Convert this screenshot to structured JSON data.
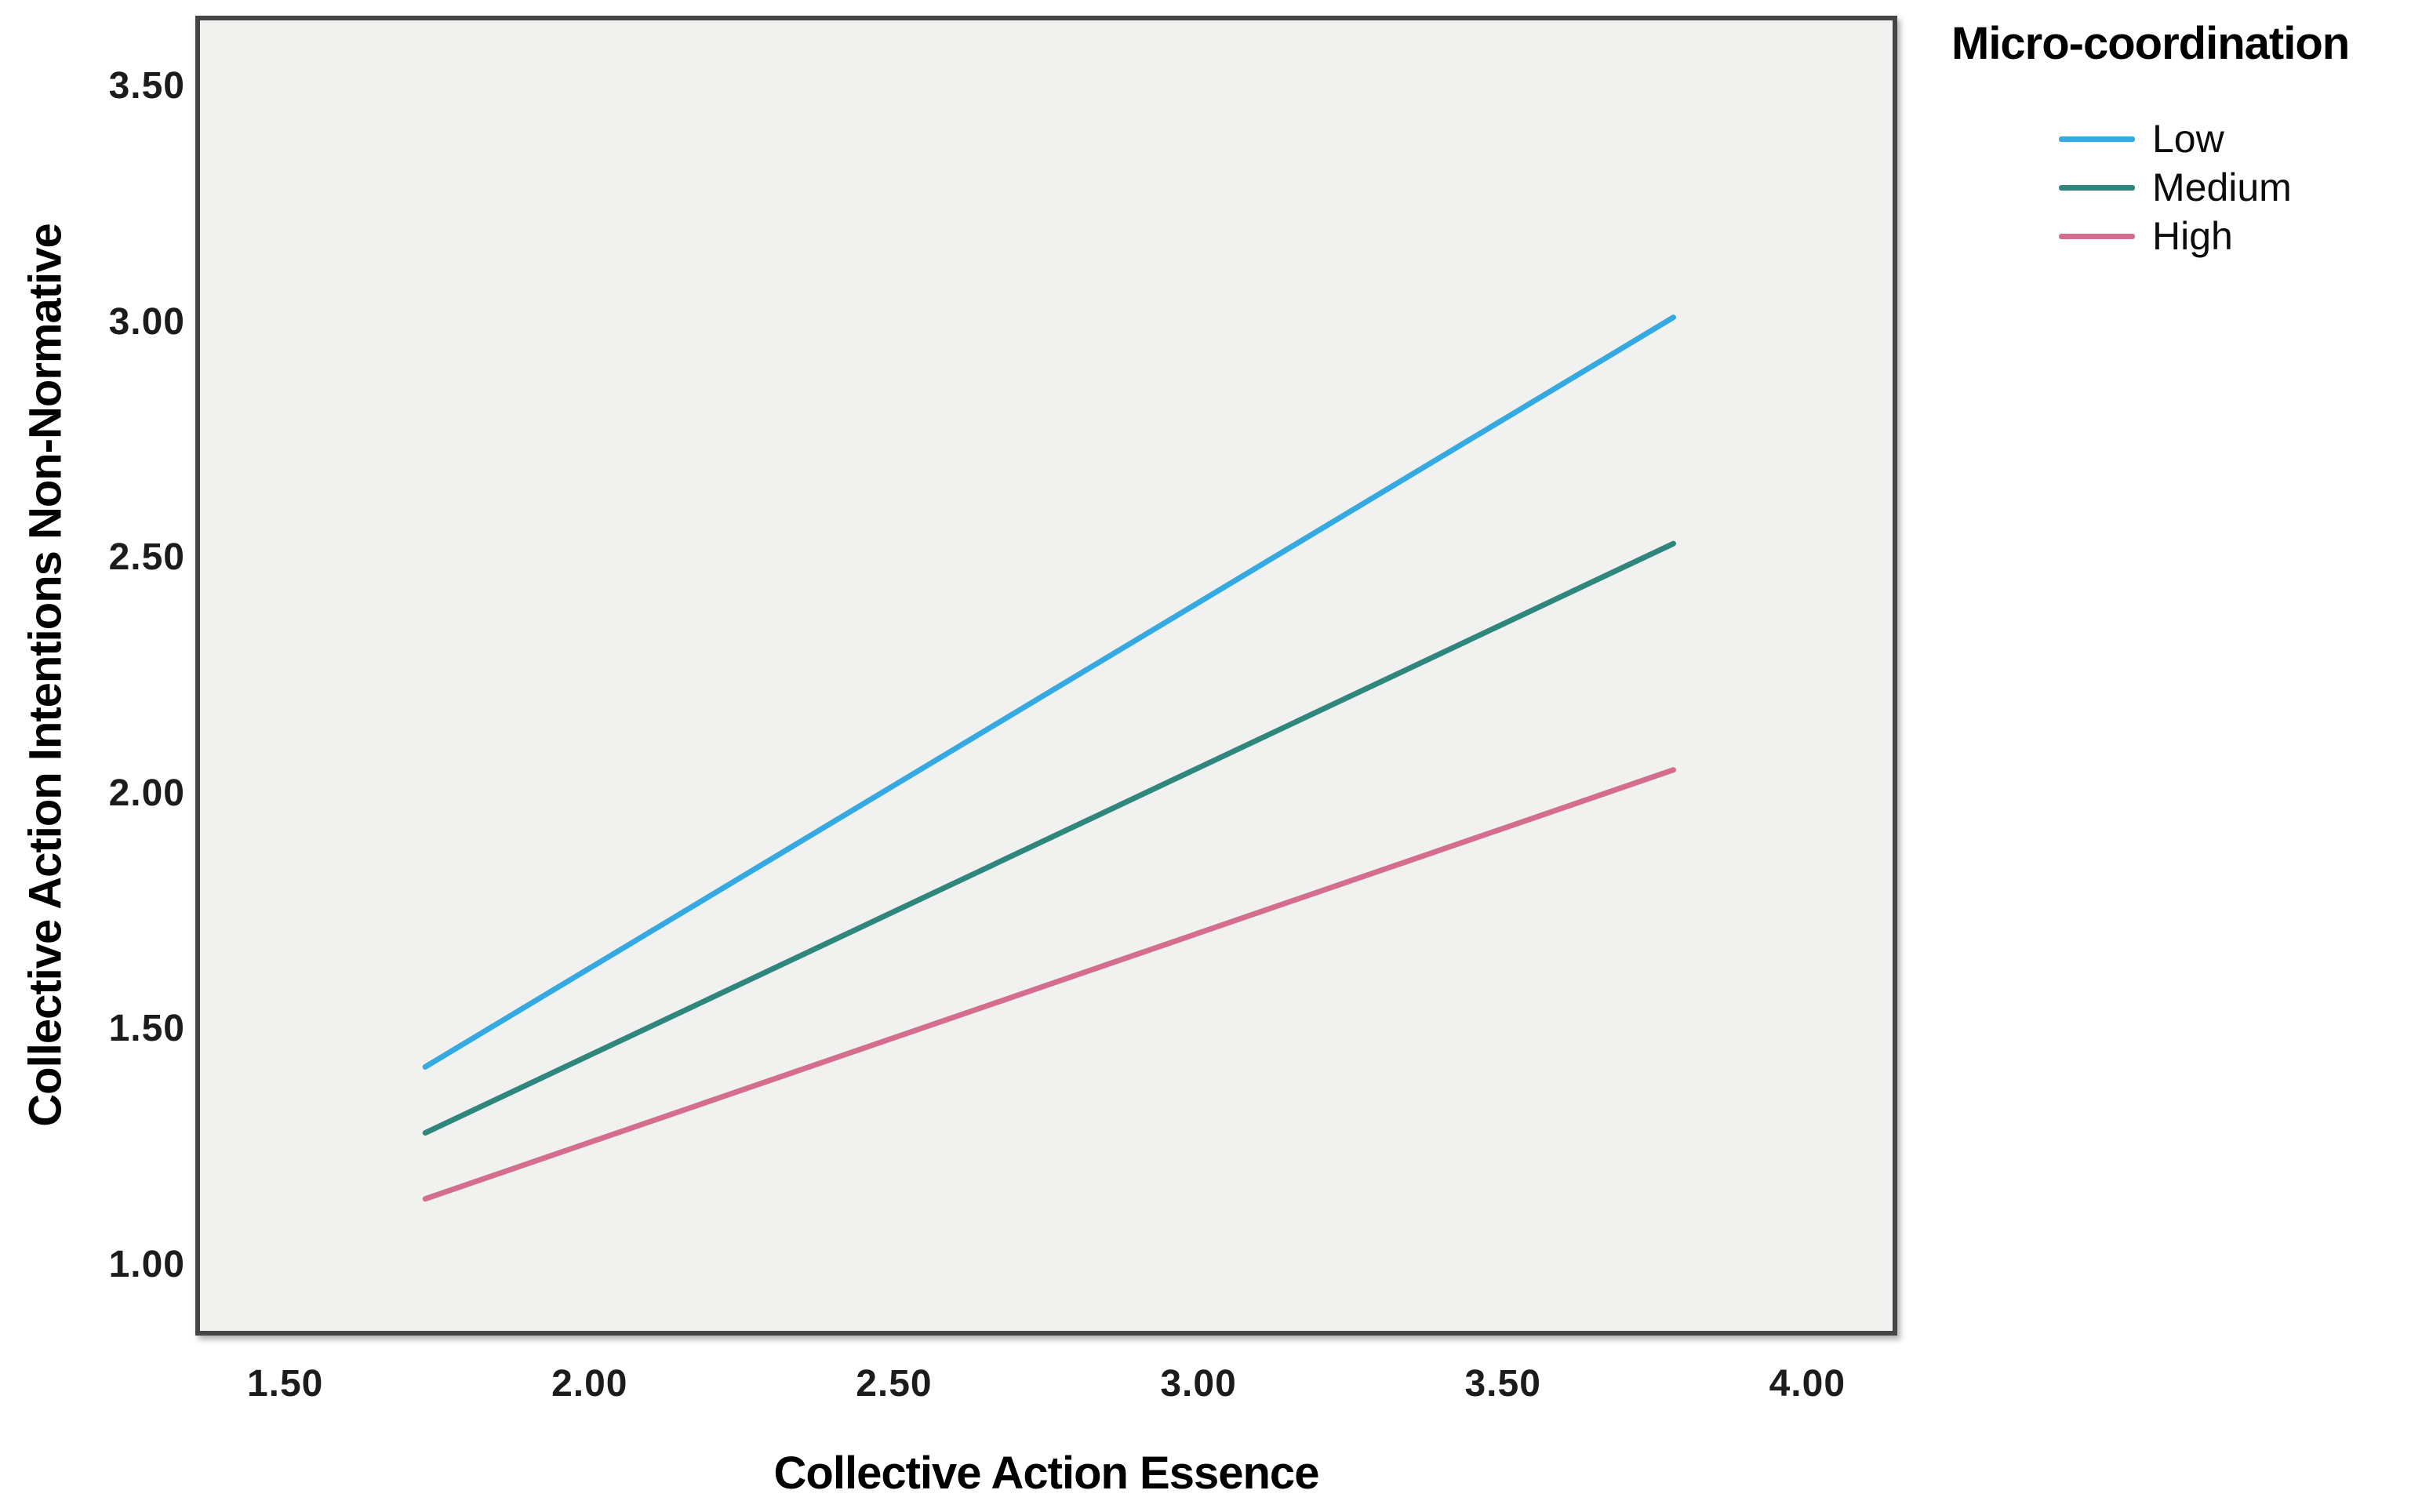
{
  "chart_data": {
    "type": "line",
    "title": "",
    "xlabel": "Collective Action Essence",
    "ylabel": "Collective Action Intentions Non-Normative",
    "legend_title": "Micro-coordination",
    "legend_position": "top-right-outside",
    "grid": false,
    "plot_background": "#f1f1f0",
    "frame_color": "#454545",
    "x_range": [
      1.36,
      4.14
    ],
    "y_range": [
      0.86,
      3.64
    ],
    "x_ticks": [
      "1.50",
      "2.00",
      "2.50",
      "3.00",
      "3.50",
      "4.00"
    ],
    "y_ticks": [
      "1.00",
      "1.50",
      "2.00",
      "2.50",
      "3.00",
      "3.50"
    ],
    "series": [
      {
        "name": "Low",
        "color": "#35A9E1",
        "x": [
          1.73,
          3.78
        ],
        "y": [
          1.42,
          3.01
        ]
      },
      {
        "name": "Medium",
        "color": "#2E867C",
        "x": [
          1.73,
          3.78
        ],
        "y": [
          1.28,
          2.53
        ]
      },
      {
        "name": "High",
        "color": "#D56E8E",
        "x": [
          1.73,
          3.78
        ],
        "y": [
          1.14,
          2.05
        ]
      }
    ]
  }
}
